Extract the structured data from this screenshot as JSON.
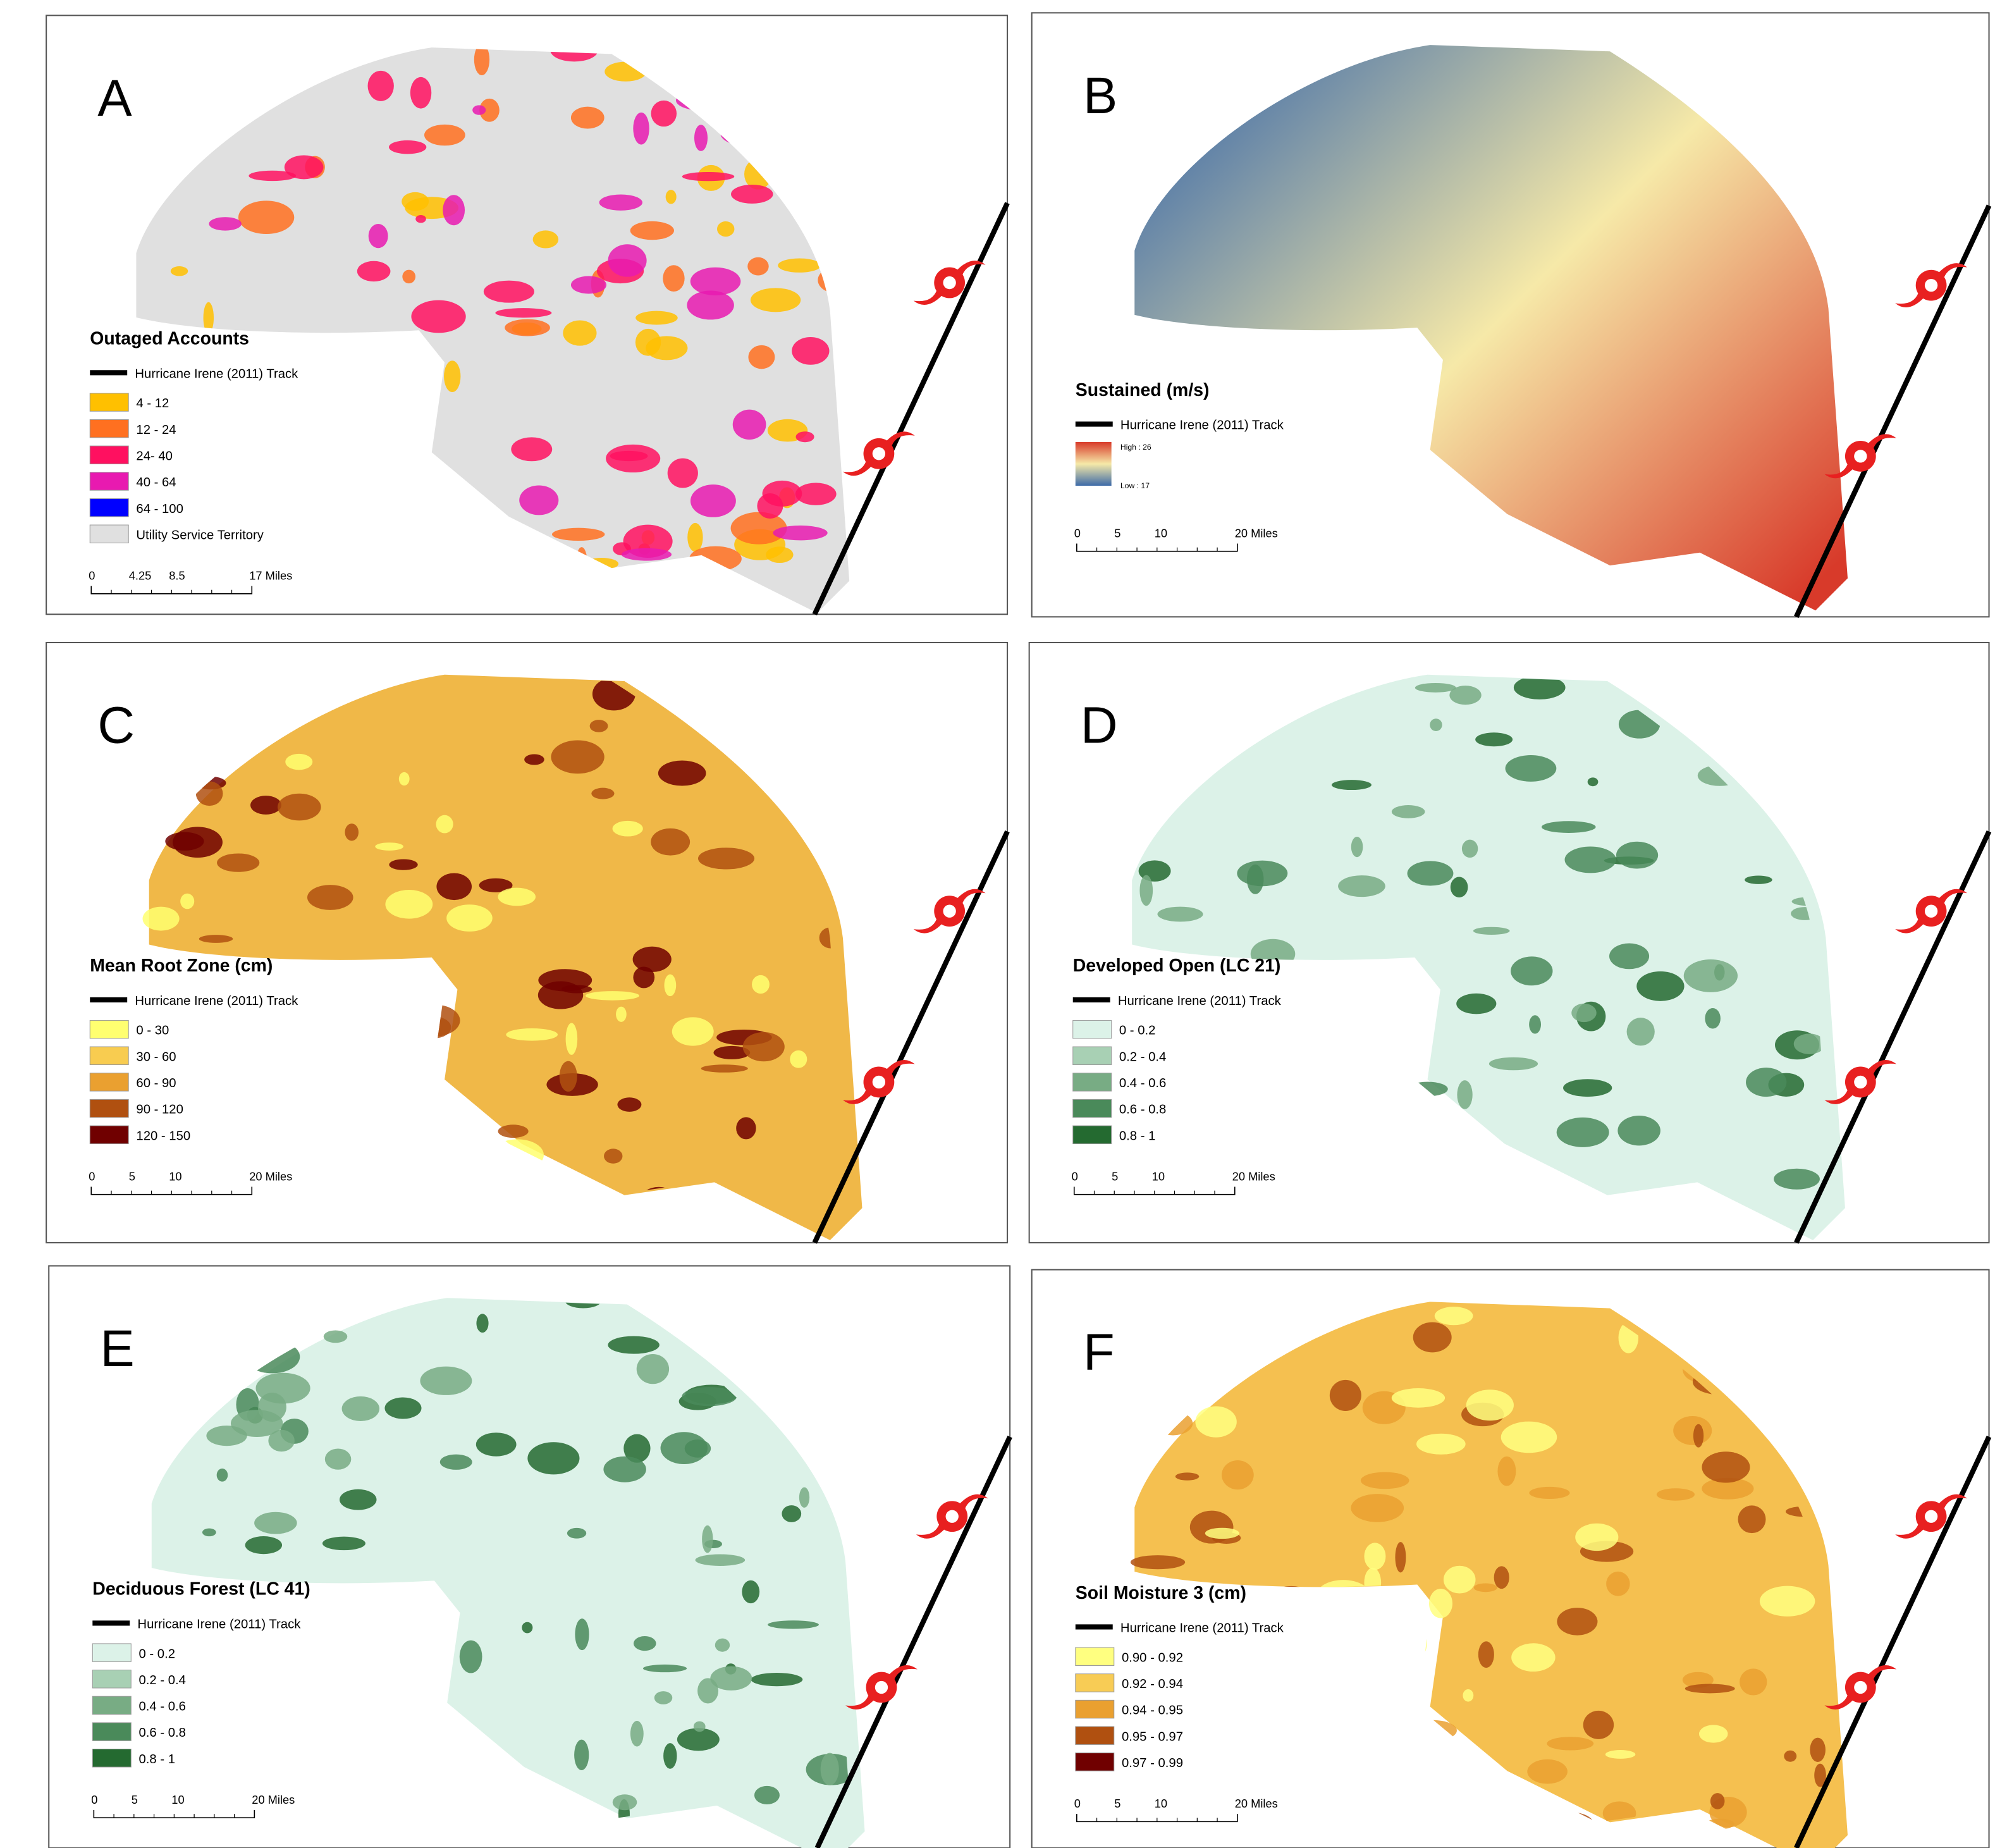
{
  "panels": [
    {
      "letter": "A",
      "legend_title": "Outaged Accounts",
      "track_label": "Hurricane Irene (2011) Track",
      "items": [
        {
          "label": "4 - 12",
          "color": "#ffc000"
        },
        {
          "label": "12 - 24",
          "color": "#ff7020"
        },
        {
          "label": "24- 40",
          "color": "#ff1060"
        },
        {
          "label": "40 - 64",
          "color": "#e81ab0"
        },
        {
          "label": "64 - 100",
          "color": "#0000ff"
        },
        {
          "label": "Utility Service Territory",
          "color": "#e0e0e0"
        }
      ],
      "scale": [
        "0",
        "4.25",
        "8.5",
        "17 Miles"
      ]
    },
    {
      "letter": "B",
      "legend_title": "Sustained (m/s)",
      "track_label": "Hurricane Irene (2011) Track",
      "gradient": {
        "high": "High : 26",
        "low": "Low : 17",
        "colors": [
          "#d83a2a",
          "#f6e9a8",
          "#3d6aa8"
        ]
      },
      "scale": [
        "0",
        "5",
        "10",
        "20 Miles"
      ]
    },
    {
      "letter": "C",
      "legend_title": "Mean Root Zone (cm)",
      "track_label": "Hurricane Irene (2011) Track",
      "items": [
        {
          "label": "0 - 30",
          "color": "#ffff70"
        },
        {
          "label": "30 - 60",
          "color": "#f8cc50"
        },
        {
          "label": "60 - 90",
          "color": "#eaa030"
        },
        {
          "label": "90 - 120",
          "color": "#b05010"
        },
        {
          "label": "120 - 150",
          "color": "#700000"
        }
      ],
      "scale": [
        "0",
        "5",
        "10",
        "20 Miles"
      ]
    },
    {
      "letter": "D",
      "legend_title": "Developed Open (LC 21)",
      "track_label": "Hurricane Irene (2011) Track",
      "items": [
        {
          "label": "0 - 0.2",
          "color": "#dcf2e8"
        },
        {
          "label": "0.2 - 0.4",
          "color": "#a8d0b4"
        },
        {
          "label": "0.4 - 0.6",
          "color": "#78ac84"
        },
        {
          "label": "0.6 - 0.8",
          "color": "#4a8a5a"
        },
        {
          "label": "0.8 - 1",
          "color": "#246a30"
        }
      ],
      "scale": [
        "0",
        "5",
        "10",
        "20 Miles"
      ]
    },
    {
      "letter": "E",
      "legend_title": "Deciduous Forest (LC 41)",
      "track_label": "Hurricane Irene (2011) Track",
      "items": [
        {
          "label": "0 - 0.2",
          "color": "#dcf2e8"
        },
        {
          "label": "0.2 - 0.4",
          "color": "#a8d0b4"
        },
        {
          "label": "0.4 - 0.6",
          "color": "#78ac84"
        },
        {
          "label": "0.6 - 0.8",
          "color": "#4a8a5a"
        },
        {
          "label": "0.8 - 1",
          "color": "#246a30"
        }
      ],
      "scale": [
        "0",
        "5",
        "10",
        "20 Miles"
      ]
    },
    {
      "letter": "F",
      "legend_title": "Soil Moisture 3 (cm)",
      "track_label": "Hurricane Irene (2011) Track",
      "items": [
        {
          "label": "0.90 - 0.92",
          "color": "#ffff80"
        },
        {
          "label": "0.92 - 0.94",
          "color": "#f8cc55"
        },
        {
          "label": "0.94 - 0.95",
          "color": "#eaa030"
        },
        {
          "label": "0.95 - 0.97",
          "color": "#b05010"
        },
        {
          "label": "0.97 - 0.99",
          "color": "#700000"
        }
      ],
      "scale": [
        "0",
        "5",
        "10",
        "20 Miles"
      ]
    }
  ]
}
